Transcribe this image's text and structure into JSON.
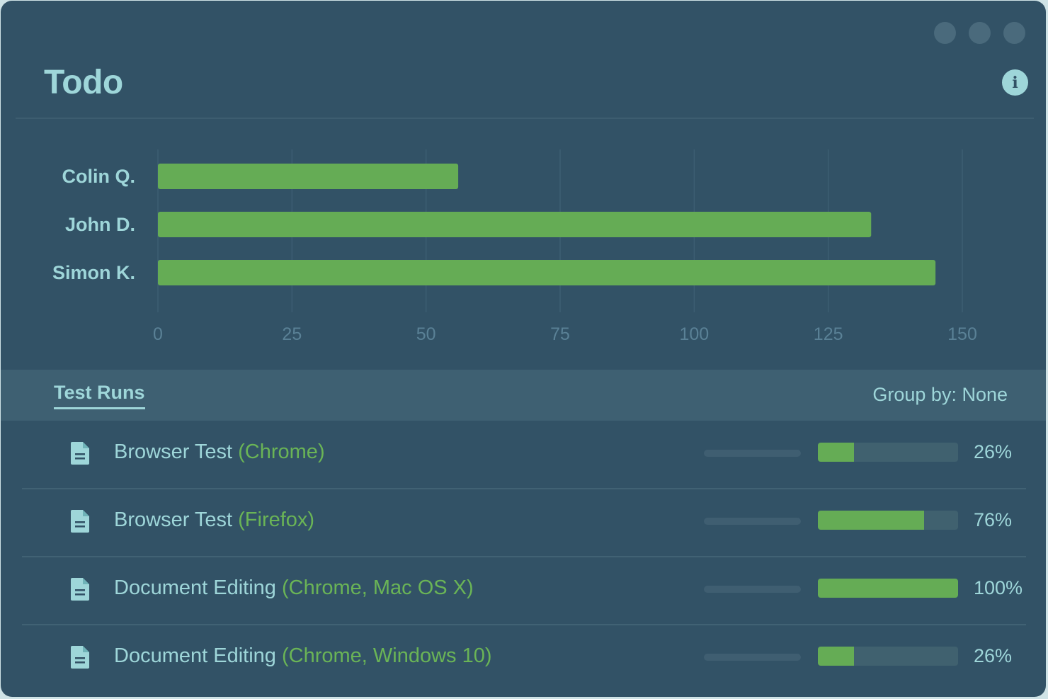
{
  "title": "Todo",
  "info_icon_glyph": "i",
  "icons": {
    "info": "info-icon",
    "document": "document-icon",
    "window_dot": "window-control-dot"
  },
  "colors": {
    "background": "#325266",
    "accent": "#9ed6d9",
    "bar": "#65ac55",
    "tag": "#6ab456"
  },
  "chart_data": {
    "type": "bar",
    "orientation": "horizontal",
    "categories": [
      "Colin Q.",
      "John D.",
      "Simon K."
    ],
    "values": [
      56,
      133,
      145
    ],
    "x_ticks": [
      0,
      25,
      50,
      75,
      100,
      125,
      150
    ],
    "xlim": [
      0,
      150
    ],
    "grid": true
  },
  "tabs": {
    "active_label": "Test Runs",
    "group_by": "Group by: None"
  },
  "test_runs": [
    {
      "name": "Browser Test",
      "tag": "(Chrome)",
      "progress": 26,
      "percent_label": "26%"
    },
    {
      "name": "Browser Test",
      "tag": "(Firefox)",
      "progress": 76,
      "percent_label": "76%"
    },
    {
      "name": "Document Editing",
      "tag": "(Chrome, Mac OS X)",
      "progress": 100,
      "percent_label": "100%"
    },
    {
      "name": "Document Editing",
      "tag": "(Chrome, Windows 10)",
      "progress": 26,
      "percent_label": "26%"
    }
  ]
}
